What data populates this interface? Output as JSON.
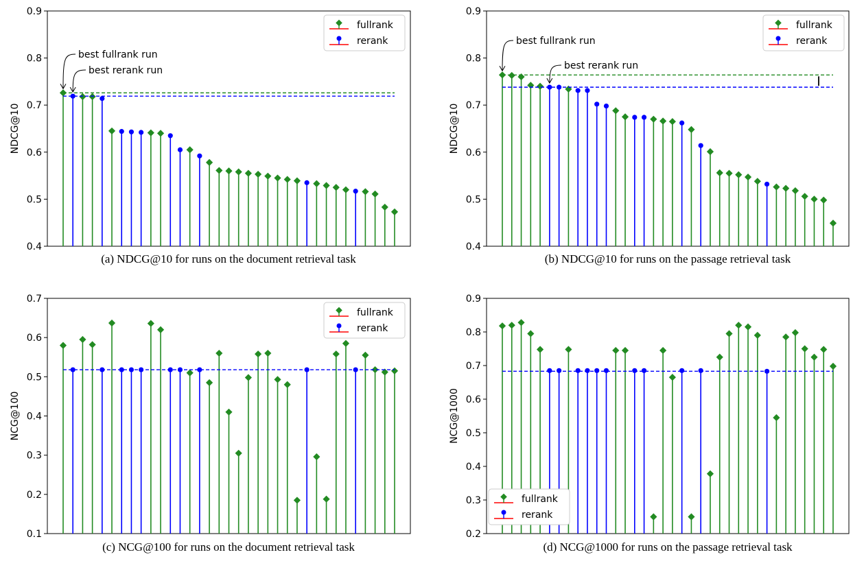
{
  "colors": {
    "fullrank": "#228B22",
    "rerank": "#0000FF",
    "legend_line": "#FF0000"
  },
  "chart_data": [
    {
      "type": "stem",
      "caption": "(a) NDCG@10 for runs on the document retrieval task",
      "ylabel": "NDCG@10",
      "ylim": [
        0.4,
        0.9
      ],
      "yticks": [
        "0.4",
        "0.5",
        "0.6",
        "0.7",
        "0.8",
        "0.9"
      ],
      "legend": {
        "position": "top-right",
        "entries": [
          "fullrank",
          "rerank"
        ]
      },
      "series_names": {
        "fullrank": "fullrank",
        "rerank": "rerank"
      },
      "ref_lines": [
        {
          "series": "fullrank",
          "value": 0.726
        },
        {
          "series": "rerank",
          "value": 0.719
        }
      ],
      "annotations": [
        {
          "text": "best fullrank run",
          "target_index": 0
        },
        {
          "text": "best rerank run",
          "target_index": 1
        }
      ],
      "types": [
        "f",
        "r",
        "f",
        "f",
        "r",
        "f",
        "r",
        "r",
        "r",
        "f",
        "f",
        "r",
        "r",
        "f",
        "r",
        "f",
        "f",
        "f",
        "f",
        "f",
        "f",
        "f",
        "f",
        "f",
        "f",
        "r",
        "f",
        "f",
        "f",
        "f",
        "r",
        "f",
        "f",
        "f",
        "f"
      ],
      "values": [
        0.726,
        0.719,
        0.718,
        0.718,
        0.714,
        0.645,
        0.644,
        0.643,
        0.642,
        0.641,
        0.64,
        0.635,
        0.605,
        0.605,
        0.592,
        0.578,
        0.561,
        0.56,
        0.558,
        0.555,
        0.553,
        0.549,
        0.545,
        0.542,
        0.539,
        0.535,
        0.533,
        0.529,
        0.525,
        0.52,
        0.517,
        0.516,
        0.511,
        0.483,
        0.473
      ]
    },
    {
      "type": "stem",
      "caption": "(b) NDCG@10 for runs on the passage retrieval task",
      "ylabel": "NDCG@10",
      "ylim": [
        0.4,
        0.9
      ],
      "yticks": [
        "0.4",
        "0.5",
        "0.6",
        "0.7",
        "0.8",
        "0.9"
      ],
      "legend": {
        "position": "top-right",
        "entries": [
          "fullrank",
          "rerank"
        ]
      },
      "series_names": {
        "fullrank": "fullrank",
        "rerank": "rerank"
      },
      "ref_lines": [
        {
          "series": "fullrank",
          "value": 0.764
        },
        {
          "series": "rerank",
          "value": 0.738
        }
      ],
      "gap_marker": true,
      "annotations": [
        {
          "text": "best fullrank run",
          "target_index": 0
        },
        {
          "text": "best rerank run",
          "target_index": 5
        }
      ],
      "types": [
        "f",
        "f",
        "f",
        "f",
        "f",
        "r",
        "r",
        "f",
        "r",
        "r",
        "r",
        "r",
        "f",
        "f",
        "r",
        "r",
        "f",
        "f",
        "f",
        "r",
        "f",
        "r",
        "f",
        "f",
        "f",
        "f",
        "f",
        "f",
        "r",
        "f",
        "f",
        "f",
        "f",
        "f",
        "f",
        "f"
      ],
      "values": [
        0.764,
        0.763,
        0.76,
        0.742,
        0.74,
        0.738,
        0.738,
        0.734,
        0.731,
        0.731,
        0.702,
        0.698,
        0.688,
        0.675,
        0.674,
        0.674,
        0.67,
        0.666,
        0.665,
        0.662,
        0.648,
        0.614,
        0.601,
        0.556,
        0.555,
        0.552,
        0.547,
        0.538,
        0.532,
        0.526,
        0.523,
        0.518,
        0.506,
        0.5,
        0.498,
        0.449
      ]
    },
    {
      "type": "stem",
      "caption": "(c) NCG@100 for runs on the document retrieval task",
      "ylabel": "NCG@100",
      "ylim": [
        0.1,
        0.7
      ],
      "yticks": [
        "0.1",
        "0.2",
        "0.3",
        "0.4",
        "0.5",
        "0.6",
        "0.7"
      ],
      "legend": {
        "position": "top-right",
        "entries": [
          "fullrank",
          "rerank"
        ]
      },
      "series_names": {
        "fullrank": "fullrank",
        "rerank": "rerank"
      },
      "ref_lines": [
        {
          "series": "rerank",
          "value": 0.518
        }
      ],
      "annotations": [],
      "types": [
        "f",
        "r",
        "f",
        "f",
        "r",
        "f",
        "r",
        "r",
        "r",
        "f",
        "f",
        "r",
        "r",
        "f",
        "r",
        "f",
        "f",
        "f",
        "f",
        "f",
        "f",
        "f",
        "f",
        "f",
        "f",
        "r",
        "f",
        "f",
        "f",
        "f",
        "r",
        "f",
        "f",
        "f",
        "f"
      ],
      "values": [
        0.58,
        0.518,
        0.595,
        0.582,
        0.518,
        0.637,
        0.518,
        0.518,
        0.518,
        0.636,
        0.62,
        0.518,
        0.518,
        0.51,
        0.518,
        0.485,
        0.56,
        0.41,
        0.305,
        0.498,
        0.558,
        0.56,
        0.493,
        0.48,
        0.185,
        0.518,
        0.296,
        0.188,
        0.558,
        0.585,
        0.518,
        0.555,
        0.518,
        0.512,
        0.515
      ]
    },
    {
      "type": "stem",
      "caption": "(d) NCG@1000 for runs on the passage retrieval task",
      "ylabel": "NCG@1000",
      "ylim": [
        0.2,
        0.9
      ],
      "yticks": [
        "0.2",
        "0.3",
        "0.4",
        "0.5",
        "0.6",
        "0.7",
        "0.8",
        "0.9"
      ],
      "legend": {
        "position": "bottom-left",
        "entries": [
          "fullrank",
          "rerank"
        ]
      },
      "series_names": {
        "fullrank": "fullrank",
        "rerank": "rerank"
      },
      "ref_lines": [
        {
          "series": "rerank",
          "value": 0.683
        }
      ],
      "annotations": [],
      "types": [
        "f",
        "f",
        "f",
        "f",
        "f",
        "r",
        "r",
        "f",
        "r",
        "r",
        "r",
        "r",
        "f",
        "f",
        "r",
        "r",
        "f",
        "f",
        "f",
        "r",
        "f",
        "r",
        "f",
        "f",
        "f",
        "f",
        "f",
        "f",
        "r",
        "f",
        "f",
        "f",
        "f",
        "f",
        "f",
        "f"
      ],
      "values": [
        0.818,
        0.82,
        0.828,
        0.795,
        0.748,
        0.685,
        0.685,
        0.748,
        0.685,
        0.685,
        0.685,
        0.685,
        0.745,
        0.745,
        0.685,
        0.685,
        0.25,
        0.745,
        0.665,
        0.685,
        0.25,
        0.685,
        0.378,
        0.725,
        0.795,
        0.82,
        0.815,
        0.79,
        0.683,
        0.545,
        0.785,
        0.798,
        0.75,
        0.725,
        0.748,
        0.698
      ]
    }
  ]
}
